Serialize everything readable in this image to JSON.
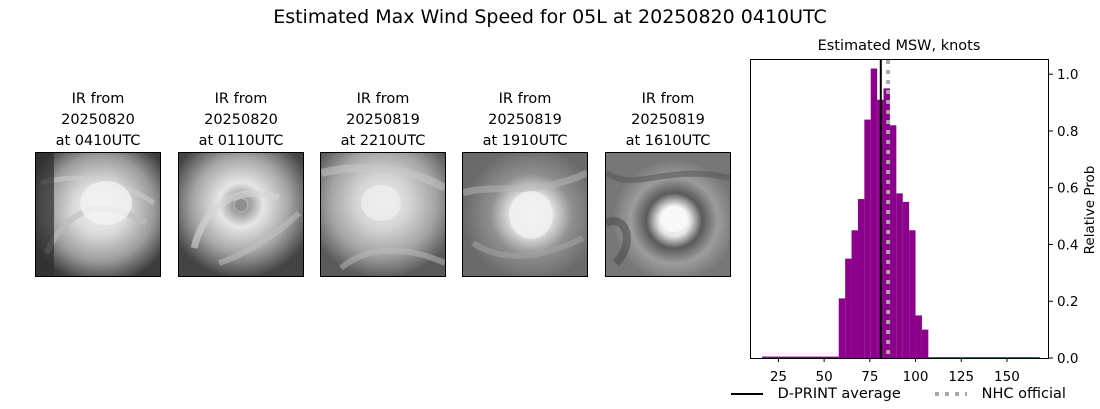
{
  "suptitle": "Estimated Max Wind Speed for 05L at 20250820 0410UTC",
  "ir_panels": [
    {
      "line1": "IR from",
      "line2": "20250820",
      "line3": "at 0410UTC"
    },
    {
      "line1": "IR from",
      "line2": "20250820",
      "line3": "at 0110UTC"
    },
    {
      "line1": "IR from",
      "line2": "20250819",
      "line3": "at 2210UTC"
    },
    {
      "line1": "IR from",
      "line2": "20250819",
      "line3": "at 1910UTC"
    },
    {
      "line1": "IR from",
      "line2": "20250819",
      "line3": "at 1610UTC"
    }
  ],
  "chart_data": {
    "type": "bar",
    "title": "Estimated MSW, knots",
    "xlabel": "",
    "ylabel": "Relative Prob",
    "xlim": [
      10,
      173
    ],
    "ylim": [
      0,
      1.05
    ],
    "xticks": [
      25,
      50,
      75,
      100,
      125,
      150
    ],
    "yticks": [
      0.0,
      0.2,
      0.4,
      0.6,
      0.8,
      1.0
    ],
    "ytick_labels": [
      "0.0",
      "0.2",
      "0.4",
      "0.6",
      "0.8",
      "1.0"
    ],
    "y_axis_side": "right",
    "bar_color": "#8b008b",
    "bin_width": 3.5,
    "bins": [
      {
        "x0": 16,
        "x1": 58,
        "y": 0.005
      },
      {
        "x0": 58,
        "x1": 61.5,
        "y": 0.21
      },
      {
        "x0": 61.5,
        "x1": 65,
        "y": 0.35
      },
      {
        "x0": 65,
        "x1": 68.5,
        "y": 0.45
      },
      {
        "x0": 68.5,
        "x1": 72,
        "y": 0.56
      },
      {
        "x0": 72,
        "x1": 75.5,
        "y": 0.84
      },
      {
        "x0": 75.5,
        "x1": 79,
        "y": 1.02
      },
      {
        "x0": 79,
        "x1": 82.5,
        "y": 0.91
      },
      {
        "x0": 82.5,
        "x1": 86,
        "y": 0.95
      },
      {
        "x0": 86,
        "x1": 89.5,
        "y": 0.82
      },
      {
        "x0": 89.5,
        "x1": 93,
        "y": 0.58
      },
      {
        "x0": 93,
        "x1": 96.5,
        "y": 0.55
      },
      {
        "x0": 96.5,
        "x1": 100,
        "y": 0.45
      },
      {
        "x0": 100,
        "x1": 103.5,
        "y": 0.15
      },
      {
        "x0": 103.5,
        "x1": 107,
        "y": 0.1
      },
      {
        "x0": 107,
        "x1": 168,
        "y": 0.003
      }
    ],
    "vlines": [
      {
        "name": "D-PRINT average",
        "x": 81,
        "color": "#000000",
        "style": "solid"
      },
      {
        "name": "NHC official",
        "x": 85,
        "color": "#a9a9a9",
        "style": "dotted"
      }
    ],
    "legend": {
      "placement": "bottom",
      "entries": [
        {
          "label": "D-PRINT average",
          "color": "#000000",
          "style": "solid"
        },
        {
          "label": "NHC official",
          "color": "#a9a9a9",
          "style": "dotted"
        }
      ]
    }
  }
}
